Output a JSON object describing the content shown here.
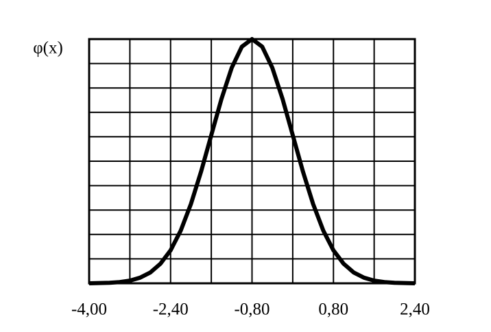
{
  "chart_data": {
    "type": "line",
    "y_label": "φ(x)",
    "x": [
      -4.0,
      -3.8,
      -3.6,
      -3.4,
      -3.2,
      -3.0,
      -2.8,
      -2.6,
      -2.4,
      -2.2,
      -2.0,
      -1.8,
      -1.6,
      -1.4,
      -1.2,
      -1.0,
      -0.8,
      -0.6,
      -0.4,
      -0.2,
      0.0,
      0.2,
      0.4,
      0.6,
      0.8,
      1.0,
      1.2,
      1.4,
      1.6,
      1.8,
      2.0,
      2.2,
      2.4
    ],
    "values": [
      0,
      0.001,
      0.002,
      0.005,
      0.011,
      0.023,
      0.044,
      0.08,
      0.135,
      0.216,
      0.325,
      0.458,
      0.607,
      0.755,
      0.882,
      0.969,
      1,
      0.969,
      0.882,
      0.755,
      0.607,
      0.458,
      0.325,
      0.216,
      0.135,
      0.08,
      0.044,
      0.023,
      0.011,
      0.005,
      0.002,
      0.001,
      0
    ],
    "color": "#000000",
    "xlim": [
      -4.0,
      2.4
    ],
    "ylim": [
      0,
      1
    ],
    "xticks": [
      {
        "value": -4.0,
        "label": "-4,00"
      },
      {
        "value": -2.4,
        "label": "-2,40"
      },
      {
        "value": -0.8,
        "label": "-0,80"
      },
      {
        "value": 0.8,
        "label": "0,80"
      },
      {
        "value": 2.4,
        "label": "2,40"
      }
    ],
    "grid": true
  }
}
